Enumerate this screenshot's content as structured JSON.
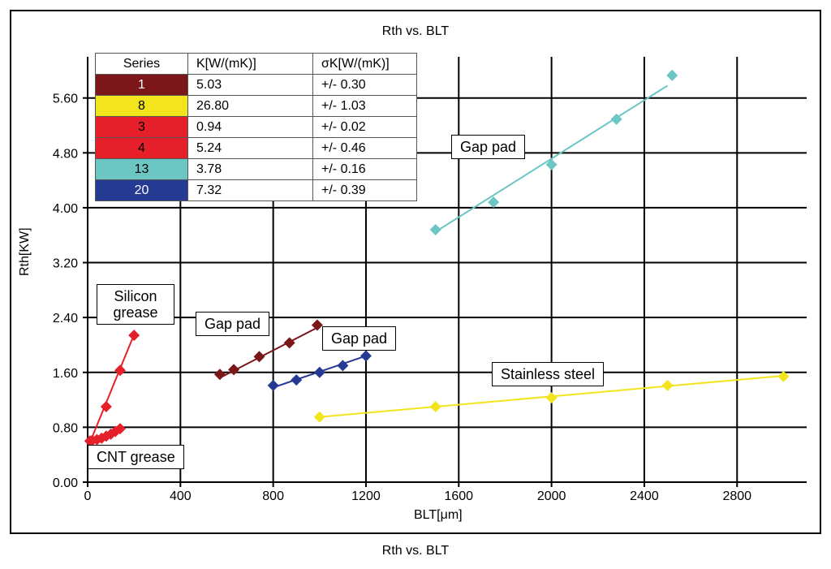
{
  "chart_data": {
    "type": "scatter",
    "title": "Rth vs. BLT",
    "caption": "Rth vs. BLT",
    "xlabel": "BLT[μm]",
    "ylabel": "Rth[KW]",
    "xlim": [
      0,
      3100
    ],
    "ylim": [
      0,
      6.2
    ],
    "xticks": [
      0,
      400,
      800,
      1200,
      1600,
      2000,
      2400,
      2800
    ],
    "xtick_labels": [
      "0",
      "400",
      "800",
      "1200",
      "1600",
      "2000",
      "2400",
      "2800"
    ],
    "yticks": [
      0,
      0.8,
      1.6,
      2.4,
      3.2,
      4.0,
      4.8,
      5.6
    ],
    "ytick_labels": [
      "0.00",
      "0.80",
      "1.60",
      "2.40",
      "3.20",
      "4.00",
      "4.80",
      "5.60"
    ],
    "grid": true,
    "legend": {
      "headers": [
        "Series",
        "K[W/(mK)]",
        "σK[W/(mK)]"
      ],
      "rows": [
        {
          "series": "1",
          "k": "5.03",
          "sigma": "+/- 0.30",
          "color": "#7b1719"
        },
        {
          "series": "8",
          "k": "26.80",
          "sigma": "+/- 1.03",
          "color": "#f2e51d"
        },
        {
          "series": "3",
          "k": "0.94",
          "sigma": "+/- 0.02",
          "color": "#e5202a"
        },
        {
          "series": "4",
          "k": "5.24",
          "sigma": "+/- 0.46",
          "color": "#e5202a"
        },
        {
          "series": "13",
          "k": "3.78",
          "sigma": "+/- 0.16",
          "color": "#6cc6c4"
        },
        {
          "series": "20",
          "k": "7.32",
          "sigma": "+/- 0.39",
          "color": "#253a93"
        }
      ]
    },
    "series": [
      {
        "name": "1",
        "color": "#7b1719",
        "x": [
          570,
          630,
          740,
          870,
          990
        ],
        "y": [
          1.57,
          1.64,
          1.83,
          2.03,
          2.29
        ],
        "fit": [
          [
            570,
            1.52
          ],
          [
            1000,
            2.27
          ]
        ]
      },
      {
        "name": "8",
        "color": "#f2e51d",
        "x": [
          1000,
          1500,
          2000,
          2500,
          3000
        ],
        "y": [
          0.95,
          1.1,
          1.23,
          1.41,
          1.54
        ],
        "fit": [
          [
            1000,
            0.95
          ],
          [
            3000,
            1.55
          ]
        ]
      },
      {
        "name": "3",
        "color": "#e5202a",
        "x": [
          20,
          40,
          60,
          80,
          100,
          120,
          140
        ],
        "y": [
          0.61,
          0.62,
          0.64,
          0.67,
          0.7,
          0.74,
          0.78
        ],
        "fit": [
          [
            10,
            0.58
          ],
          [
            140,
            0.78
          ]
        ]
      },
      {
        "name": "4",
        "color": "#e5202a",
        "x": [
          10,
          80,
          140,
          200
        ],
        "y": [
          0.6,
          1.1,
          1.63,
          2.14
        ],
        "fit": [
          [
            10,
            0.58
          ],
          [
            200,
            2.15
          ]
        ]
      },
      {
        "name": "13",
        "color": "#6cc6c4",
        "x": [
          1500,
          1750,
          2000,
          2280,
          2520
        ],
        "y": [
          3.68,
          4.08,
          4.63,
          5.29,
          5.93
        ],
        "fit": [
          [
            1500,
            3.65
          ],
          [
            2500,
            5.78
          ]
        ]
      },
      {
        "name": "20",
        "color": "#253a93",
        "x": [
          800,
          900,
          1000,
          1100,
          1200
        ],
        "y": [
          1.41,
          1.49,
          1.6,
          1.7,
          1.84
        ],
        "fit": [
          [
            800,
            1.38
          ],
          [
            1200,
            1.84
          ]
        ]
      }
    ],
    "annotations": [
      {
        "text": "Gap pad",
        "points_to_series": "13"
      },
      {
        "text": "Gap pad",
        "points_to_series": "1"
      },
      {
        "text": "Gap pad",
        "points_to_series": "20"
      },
      {
        "text": "Silicon grease",
        "points_to_series": "4"
      },
      {
        "text": "CNT grease",
        "points_to_series": "3"
      },
      {
        "text": "Stainless steel",
        "points_to_series": "8"
      }
    ]
  }
}
